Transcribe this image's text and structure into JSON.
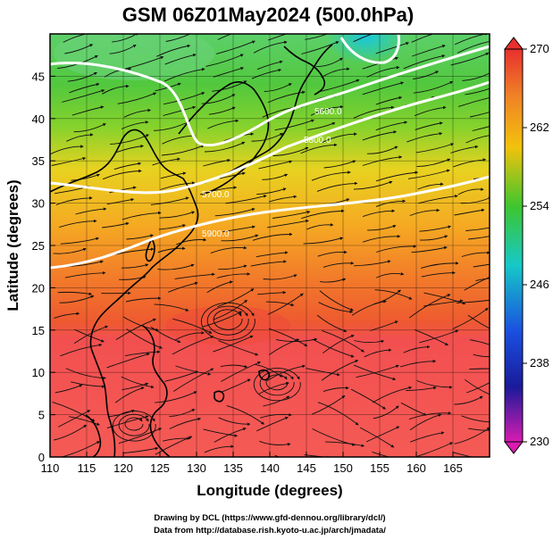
{
  "title": "GSM 06Z01May2024 (500.0hPa)",
  "x_axis": {
    "label": "Longitude (degrees)",
    "ticks": [
      "110",
      "115",
      "120",
      "125",
      "130",
      "135",
      "140",
      "145",
      "150",
      "155",
      "160",
      "165"
    ]
  },
  "y_axis": {
    "label": "Latitude  (degrees)",
    "ticks": [
      "0",
      "5",
      "10",
      "15",
      "20",
      "25",
      "30",
      "35",
      "40",
      "45"
    ]
  },
  "colorbar": {
    "labels": [
      "270",
      "262",
      "254",
      "246",
      "238",
      "230"
    ],
    "colors": [
      "#e8302e",
      "#f08226",
      "#f2c20c",
      "#3ec62e",
      "#16c8c8",
      "#1a4fe0",
      "#1a1a9a",
      "#d81cb0"
    ]
  },
  "contours": [
    "5600.0",
    "5800.0",
    "5700.0",
    "5900.0"
  ],
  "credit": {
    "line1": "Drawing by DCL (https://www.gfd-dennou.org/library/dcl/)",
    "line2": "Data from http://database.rish.kyoto-u.ac.jp/arch/jmadata/"
  },
  "chart_data": {
    "type": "heatmap",
    "title": "GSM 06Z01May2024 (500.0hPa)",
    "xlabel": "Longitude (degrees)",
    "ylabel": "Latitude  (degrees)",
    "xlim": [
      110,
      170
    ],
    "ylim": [
      0,
      50
    ],
    "colorbar_range": [
      230,
      270
    ],
    "colorbar_ticks": [
      230,
      238,
      246,
      254,
      262,
      270
    ],
    "contour_levels": [
      5600,
      5700,
      5800,
      5900
    ],
    "overlays": [
      "temperature shading",
      "wind streamlines",
      "geopotential height contours",
      "coastlines",
      "1x1 lat-lon grid"
    ]
  }
}
